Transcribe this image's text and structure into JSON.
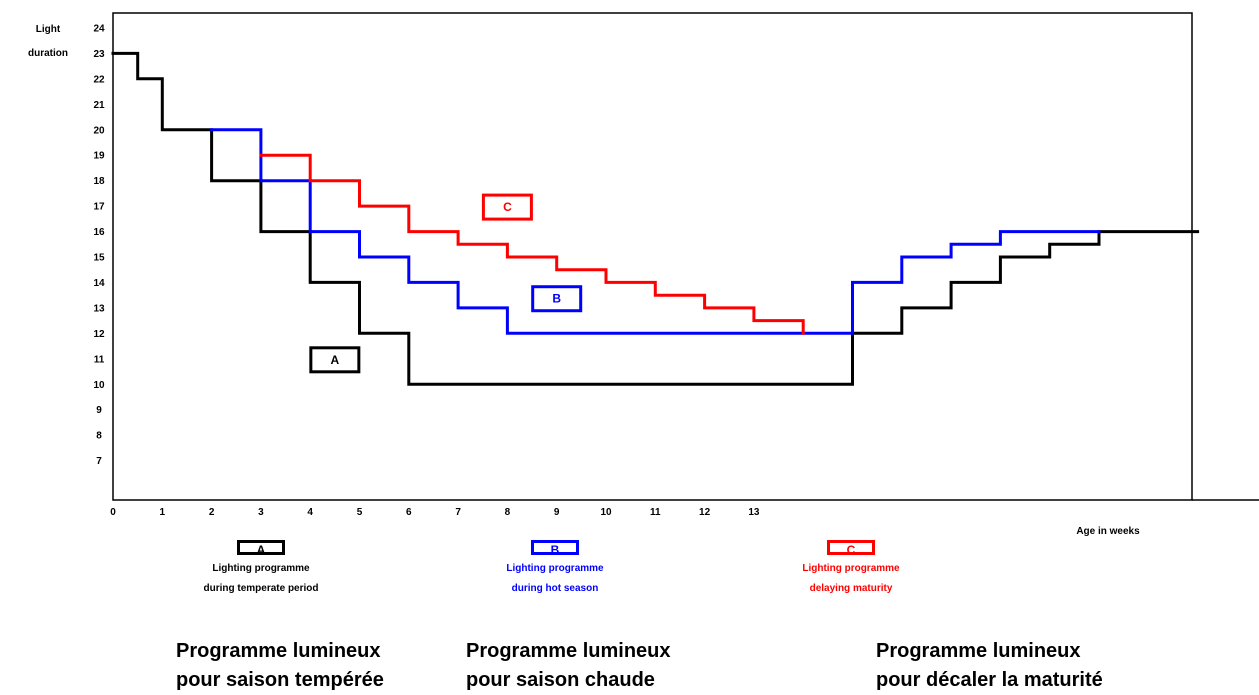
{
  "chart_data": {
    "type": "line",
    "step": true,
    "ylabel": [
      "Light",
      "duration"
    ],
    "xlabel": "Age in weeks",
    "y_ticks": [
      "7",
      "8",
      "9",
      "10",
      "11",
      "12",
      "13",
      "14",
      "15",
      "16",
      "17",
      "18",
      "19",
      "20",
      "21",
      "22",
      "23",
      "24"
    ],
    "x_ticks": [
      "0",
      "1",
      "2",
      "3",
      "4",
      "5",
      "6",
      "7",
      "8",
      "9",
      "10",
      "11",
      "12",
      "13"
    ],
    "xlim": [
      0,
      22
    ],
    "ylim": [
      5,
      24.5
    ],
    "grid": false,
    "series": [
      {
        "name": "A",
        "color": "#000000",
        "points": [
          [
            0,
            23
          ],
          [
            0.5,
            23
          ],
          [
            0.5,
            22
          ],
          [
            1,
            22
          ],
          [
            1,
            20
          ],
          [
            2,
            20
          ],
          [
            2,
            18
          ],
          [
            3,
            18
          ],
          [
            3,
            16
          ],
          [
            4,
            16
          ],
          [
            4,
            14
          ],
          [
            5,
            14
          ],
          [
            5,
            12
          ],
          [
            6,
            12
          ],
          [
            6,
            10
          ],
          [
            15,
            10
          ],
          [
            15,
            12
          ],
          [
            16,
            12
          ],
          [
            16,
            13
          ],
          [
            17,
            13
          ],
          [
            17,
            14
          ],
          [
            18,
            14
          ],
          [
            18,
            15
          ],
          [
            19,
            15
          ],
          [
            19,
            15.5
          ],
          [
            20,
            15.5
          ],
          [
            20,
            16
          ],
          [
            22,
            16
          ]
        ]
      },
      {
        "name": "B",
        "color": "#0000ff",
        "points": [
          [
            2,
            20
          ],
          [
            3,
            20
          ],
          [
            3,
            18
          ],
          [
            4,
            18
          ],
          [
            4,
            16
          ],
          [
            5,
            16
          ],
          [
            5,
            15
          ],
          [
            6,
            15
          ],
          [
            6,
            14
          ],
          [
            7,
            14
          ],
          [
            7,
            13
          ],
          [
            8,
            13
          ],
          [
            8,
            12
          ],
          [
            15,
            12
          ],
          [
            15,
            14
          ],
          [
            16,
            14
          ],
          [
            16,
            15
          ],
          [
            17,
            15
          ],
          [
            17,
            15.5
          ],
          [
            18,
            15.5
          ],
          [
            18,
            16
          ],
          [
            20,
            16
          ]
        ]
      },
      {
        "name": "C",
        "color": "#ff0000",
        "points": [
          [
            3,
            19
          ],
          [
            4,
            19
          ],
          [
            4,
            18
          ],
          [
            5,
            18
          ],
          [
            5,
            17
          ],
          [
            6,
            17
          ],
          [
            6,
            16
          ],
          [
            7,
            16
          ],
          [
            7,
            15.5
          ],
          [
            8,
            15.5
          ],
          [
            8,
            15
          ],
          [
            9,
            15
          ],
          [
            9,
            14.5
          ],
          [
            10,
            14.5
          ],
          [
            10,
            14
          ],
          [
            11,
            14
          ],
          [
            11,
            13.5
          ],
          [
            12,
            13.5
          ],
          [
            12,
            13
          ],
          [
            13,
            13
          ],
          [
            13,
            12.5
          ],
          [
            14,
            12.5
          ],
          [
            14,
            12
          ]
        ]
      }
    ],
    "annotations": [
      {
        "label": "A",
        "color": "#000000",
        "x": 4.5,
        "y": 11
      },
      {
        "label": "B",
        "color": "#0000ff",
        "x": 9,
        "y": 13.4
      },
      {
        "label": "C",
        "color": "#ff0000",
        "x": 8,
        "y": 17
      }
    ]
  },
  "legend": [
    {
      "key": "A",
      "color": "#000000",
      "line1": "Lighting programme",
      "line2": "during temperate period"
    },
    {
      "key": "B",
      "color": "#0000ff",
      "line1": "Lighting programme",
      "line2": "during hot season"
    },
    {
      "key": "C",
      "color": "#ff0000",
      "line1": "Lighting programme",
      "line2": "delaying maturity"
    }
  ],
  "french_titles": [
    {
      "line1": "Programme lumineux",
      "line2": "pour saison tempérée"
    },
    {
      "line1": "Programme lumineux",
      "line2": "pour saison chaude"
    },
    {
      "line1": "Programme lumineux",
      "line2": "pour décaler la maturité"
    }
  ]
}
